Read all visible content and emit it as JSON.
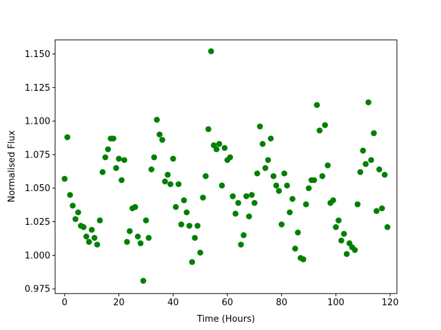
{
  "chart_data": {
    "type": "scatter",
    "title": "",
    "xlabel": "Time (Hours)",
    "ylabel": "Normalised Flux",
    "xlim": [
      -3.5,
      122.5
    ],
    "ylim": [
      0.9715,
      1.1605
    ],
    "xticks": [
      0,
      20,
      40,
      60,
      80,
      100,
      120
    ],
    "yticks": [
      0.975,
      1.0,
      1.025,
      1.05,
      1.075,
      1.1,
      1.125,
      1.15
    ],
    "ytick_labels": [
      "0.975",
      "1.000",
      "1.025",
      "1.050",
      "1.075",
      "1.100",
      "1.125",
      "1.150"
    ],
    "grid": false,
    "legend": "none",
    "marker_color": "#008000",
    "series": [
      {
        "x": [
          0,
          1,
          2,
          3,
          4,
          5,
          6,
          7,
          8,
          9,
          10,
          11,
          12,
          13,
          14,
          15,
          16,
          17,
          18,
          19,
          20,
          21,
          22,
          23,
          24,
          25,
          26,
          27,
          28,
          29,
          30,
          31,
          32,
          33,
          34,
          35,
          36,
          37,
          38,
          39,
          40,
          41,
          42,
          43,
          44,
          45,
          46,
          47,
          48,
          49,
          50,
          51,
          52,
          53,
          54,
          55,
          56,
          57,
          58,
          59,
          60,
          61,
          62,
          63,
          64,
          65,
          66,
          67,
          68,
          69,
          70,
          71,
          72,
          73,
          74,
          75,
          76,
          77,
          78,
          79,
          80,
          81,
          82,
          83,
          84,
          85,
          86,
          87,
          88,
          89,
          90,
          91,
          92,
          93,
          94,
          95,
          96,
          97,
          98,
          99,
          100,
          101,
          102,
          103,
          104,
          105,
          106,
          107,
          108,
          109,
          110,
          111,
          112,
          113,
          114,
          115,
          116,
          117,
          118,
          119
        ],
        "y": [
          1.057,
          1.088,
          1.045,
          1.037,
          1.027,
          1.032,
          1.022,
          1.021,
          1.014,
          1.01,
          1.019,
          1.013,
          1.008,
          1.026,
          1.062,
          1.073,
          1.079,
          1.087,
          1.087,
          1.065,
          1.072,
          1.056,
          1.071,
          1.01,
          1.018,
          1.035,
          1.036,
          1.014,
          1.009,
          0.981,
          1.026,
          1.013,
          1.064,
          1.073,
          1.101,
          1.09,
          1.086,
          1.055,
          1.06,
          1.053,
          1.072,
          1.036,
          1.053,
          1.023,
          1.041,
          1.032,
          1.022,
          0.995,
          1.013,
          1.022,
          1.002,
          1.043,
          1.059,
          1.094,
          1.152,
          1.082,
          1.079,
          1.083,
          1.052,
          1.08,
          1.071,
          1.073,
          1.044,
          1.031,
          1.039,
          1.008,
          1.015,
          1.044,
          1.029,
          1.045,
          1.039,
          1.061,
          1.096,
          1.083,
          1.065,
          1.071,
          1.087,
          1.059,
          1.052,
          1.048,
          1.023,
          1.061,
          1.052,
          1.032,
          1.042,
          1.005,
          1.017,
          0.998,
          0.997,
          1.038,
          1.05,
          1.056,
          1.056,
          1.112,
          1.093,
          1.059,
          1.097,
          1.067,
          1.039,
          1.041,
          1.021,
          1.026,
          1.011,
          1.016,
          1.001,
          1.009,
          1.006,
          1.004,
          1.038,
          1.062,
          1.078,
          1.068,
          1.114,
          1.071,
          1.091,
          1.033,
          1.064,
          1.035,
          1.06,
          1.021
        ]
      }
    ]
  }
}
